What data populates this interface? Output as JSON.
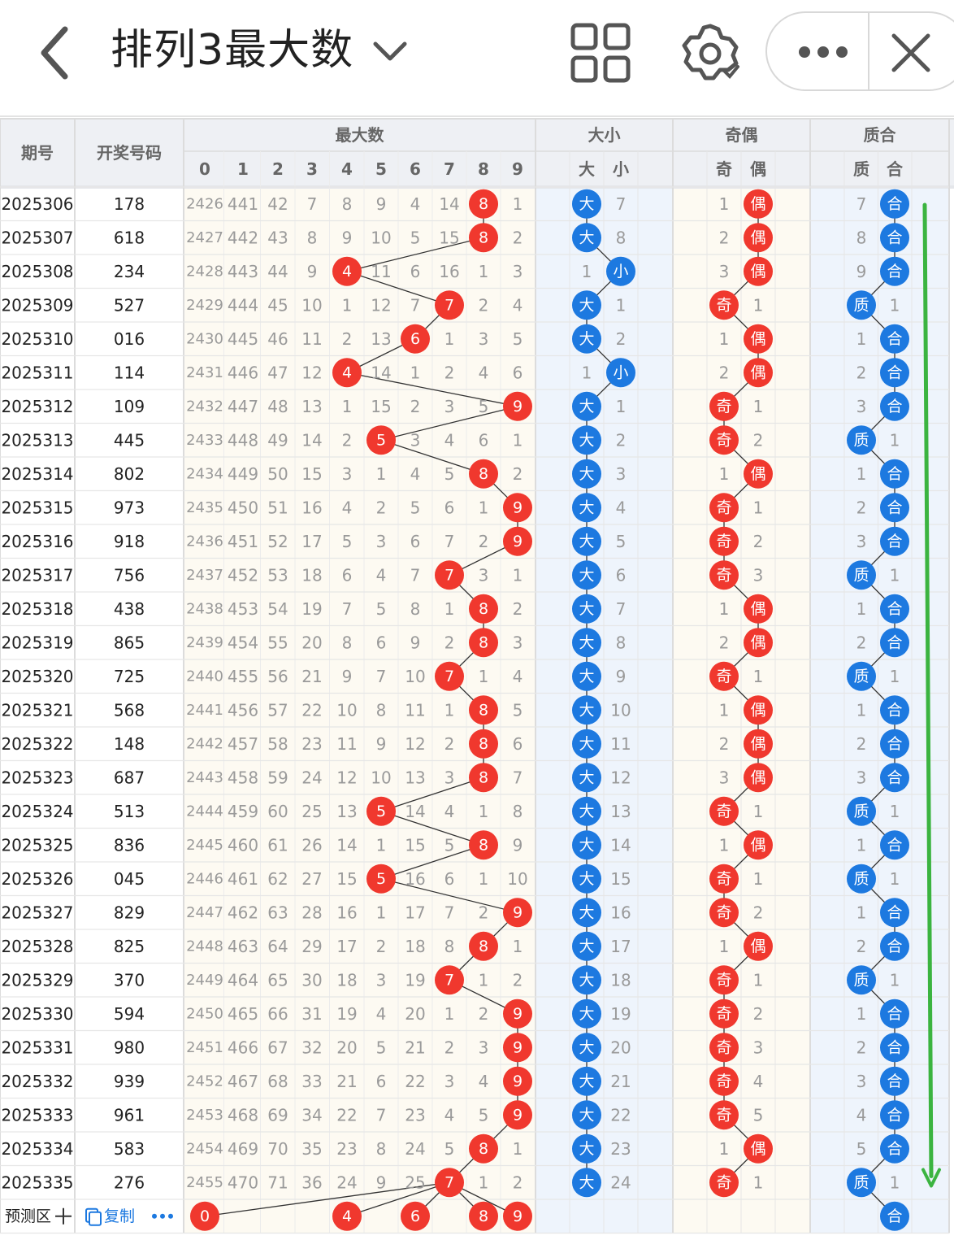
{
  "header": {
    "title": "排列3最大数",
    "icons": {
      "back": "back-chevron-icon",
      "dropdown": "chevron-down-icon",
      "grid": "grid-view-icon",
      "settings": "gear-settings-icon",
      "more": "more-dots-icon",
      "close": "close-icon"
    }
  },
  "table": {
    "col_issue": "期号",
    "col_draw": "开奖号码",
    "group_max": "最大数",
    "max_digits": [
      "0",
      "1",
      "2",
      "3",
      "4",
      "5",
      "6",
      "7",
      "8",
      "9"
    ],
    "group_size": "大小",
    "size_labels": [
      "大",
      "小"
    ],
    "group_parity": "奇偶",
    "parity_labels": [
      "奇",
      "偶"
    ],
    "group_prime": "质合",
    "prime_labels": [
      "质",
      "合"
    ],
    "rows": [
      {
        "issue": "2025306",
        "draw": "178",
        "omit": [
          2426,
          441,
          42,
          7,
          8,
          9,
          4,
          14,
          0,
          1
        ],
        "max": 8,
        "size": [
          0,
          7
        ],
        "parity": [
          1,
          0
        ],
        "prime": [
          7,
          0
        ]
      },
      {
        "issue": "2025307",
        "draw": "618",
        "omit": [
          2427,
          442,
          43,
          8,
          9,
          10,
          5,
          15,
          0,
          2
        ],
        "max": 8,
        "size": [
          0,
          8
        ],
        "parity": [
          2,
          0
        ],
        "prime": [
          8,
          0
        ]
      },
      {
        "issue": "2025308",
        "draw": "234",
        "omit": [
          2428,
          443,
          44,
          9,
          0,
          11,
          6,
          16,
          1,
          3
        ],
        "max": 4,
        "size": [
          1,
          0
        ],
        "parity": [
          3,
          0
        ],
        "prime": [
          9,
          0
        ]
      },
      {
        "issue": "2025309",
        "draw": "527",
        "omit": [
          2429,
          444,
          45,
          10,
          1,
          12,
          7,
          0,
          2,
          4
        ],
        "max": 7,
        "size": [
          0,
          1
        ],
        "parity": [
          0,
          1
        ],
        "prime": [
          0,
          1
        ]
      },
      {
        "issue": "2025310",
        "draw": "016",
        "omit": [
          2430,
          445,
          46,
          11,
          2,
          13,
          0,
          1,
          3,
          5
        ],
        "max": 6,
        "size": [
          0,
          2
        ],
        "parity": [
          1,
          0
        ],
        "prime": [
          1,
          0
        ]
      },
      {
        "issue": "2025311",
        "draw": "114",
        "omit": [
          2431,
          446,
          47,
          12,
          0,
          14,
          1,
          2,
          4,
          6
        ],
        "max": 4,
        "size": [
          1,
          0
        ],
        "parity": [
          2,
          0
        ],
        "prime": [
          2,
          0
        ]
      },
      {
        "issue": "2025312",
        "draw": "109",
        "omit": [
          2432,
          447,
          48,
          13,
          1,
          15,
          2,
          3,
          5,
          0
        ],
        "max": 9,
        "size": [
          0,
          1
        ],
        "parity": [
          0,
          1
        ],
        "prime": [
          3,
          0
        ]
      },
      {
        "issue": "2025313",
        "draw": "445",
        "omit": [
          2433,
          448,
          49,
          14,
          2,
          0,
          3,
          4,
          6,
          1
        ],
        "max": 5,
        "size": [
          0,
          2
        ],
        "parity": [
          0,
          2
        ],
        "prime": [
          0,
          1
        ]
      },
      {
        "issue": "2025314",
        "draw": "802",
        "omit": [
          2434,
          449,
          50,
          15,
          3,
          1,
          4,
          5,
          0,
          2
        ],
        "max": 8,
        "size": [
          0,
          3
        ],
        "parity": [
          1,
          0
        ],
        "prime": [
          1,
          0
        ]
      },
      {
        "issue": "2025315",
        "draw": "973",
        "omit": [
          2435,
          450,
          51,
          16,
          4,
          2,
          5,
          6,
          1,
          0
        ],
        "max": 9,
        "size": [
          0,
          4
        ],
        "parity": [
          0,
          1
        ],
        "prime": [
          2,
          0
        ]
      },
      {
        "issue": "2025316",
        "draw": "918",
        "omit": [
          2436,
          451,
          52,
          17,
          5,
          3,
          6,
          7,
          2,
          0
        ],
        "max": 9,
        "size": [
          0,
          5
        ],
        "parity": [
          0,
          2
        ],
        "prime": [
          3,
          0
        ]
      },
      {
        "issue": "2025317",
        "draw": "756",
        "omit": [
          2437,
          452,
          53,
          18,
          6,
          4,
          7,
          0,
          3,
          1
        ],
        "max": 7,
        "size": [
          0,
          6
        ],
        "parity": [
          0,
          3
        ],
        "prime": [
          0,
          1
        ]
      },
      {
        "issue": "2025318",
        "draw": "438",
        "omit": [
          2438,
          453,
          54,
          19,
          7,
          5,
          8,
          1,
          0,
          2
        ],
        "max": 8,
        "size": [
          0,
          7
        ],
        "parity": [
          1,
          0
        ],
        "prime": [
          1,
          0
        ]
      },
      {
        "issue": "2025319",
        "draw": "865",
        "omit": [
          2439,
          454,
          55,
          20,
          8,
          6,
          9,
          2,
          0,
          3
        ],
        "max": 8,
        "size": [
          0,
          8
        ],
        "parity": [
          2,
          0
        ],
        "prime": [
          2,
          0
        ]
      },
      {
        "issue": "2025320",
        "draw": "725",
        "omit": [
          2440,
          455,
          56,
          21,
          9,
          7,
          10,
          0,
          1,
          4
        ],
        "max": 7,
        "size": [
          0,
          9
        ],
        "parity": [
          0,
          1
        ],
        "prime": [
          0,
          1
        ]
      },
      {
        "issue": "2025321",
        "draw": "568",
        "omit": [
          2441,
          456,
          57,
          22,
          10,
          8,
          11,
          1,
          0,
          5
        ],
        "max": 8,
        "size": [
          0,
          10
        ],
        "parity": [
          1,
          0
        ],
        "prime": [
          1,
          0
        ]
      },
      {
        "issue": "2025322",
        "draw": "148",
        "omit": [
          2442,
          457,
          58,
          23,
          11,
          9,
          12,
          2,
          0,
          6
        ],
        "max": 8,
        "size": [
          0,
          11
        ],
        "parity": [
          2,
          0
        ],
        "prime": [
          2,
          0
        ]
      },
      {
        "issue": "2025323",
        "draw": "687",
        "omit": [
          2443,
          458,
          59,
          24,
          12,
          10,
          13,
          3,
          0,
          7
        ],
        "max": 8,
        "size": [
          0,
          12
        ],
        "parity": [
          3,
          0
        ],
        "prime": [
          3,
          0
        ]
      },
      {
        "issue": "2025324",
        "draw": "513",
        "omit": [
          2444,
          459,
          60,
          25,
          13,
          0,
          14,
          4,
          1,
          8
        ],
        "max": 5,
        "size": [
          0,
          13
        ],
        "parity": [
          0,
          1
        ],
        "prime": [
          0,
          1
        ]
      },
      {
        "issue": "2025325",
        "draw": "836",
        "omit": [
          2445,
          460,
          61,
          26,
          14,
          1,
          15,
          5,
          0,
          9
        ],
        "max": 8,
        "size": [
          0,
          14
        ],
        "parity": [
          1,
          0
        ],
        "prime": [
          1,
          0
        ]
      },
      {
        "issue": "2025326",
        "draw": "045",
        "omit": [
          2446,
          461,
          62,
          27,
          15,
          0,
          16,
          6,
          1,
          10
        ],
        "max": 5,
        "size": [
          0,
          15
        ],
        "parity": [
          0,
          1
        ],
        "prime": [
          0,
          1
        ]
      },
      {
        "issue": "2025327",
        "draw": "829",
        "omit": [
          2447,
          462,
          63,
          28,
          16,
          1,
          17,
          7,
          2,
          0
        ],
        "max": 9,
        "size": [
          0,
          16
        ],
        "parity": [
          0,
          2
        ],
        "prime": [
          1,
          0
        ]
      },
      {
        "issue": "2025328",
        "draw": "825",
        "omit": [
          2448,
          463,
          64,
          29,
          17,
          2,
          18,
          8,
          0,
          1
        ],
        "max": 8,
        "size": [
          0,
          17
        ],
        "parity": [
          1,
          0
        ],
        "prime": [
          2,
          0
        ]
      },
      {
        "issue": "2025329",
        "draw": "370",
        "omit": [
          2449,
          464,
          65,
          30,
          18,
          3,
          19,
          0,
          1,
          2
        ],
        "max": 7,
        "size": [
          0,
          18
        ],
        "parity": [
          0,
          1
        ],
        "prime": [
          0,
          1
        ]
      },
      {
        "issue": "2025330",
        "draw": "594",
        "omit": [
          2450,
          465,
          66,
          31,
          19,
          4,
          20,
          1,
          2,
          0
        ],
        "max": 9,
        "size": [
          0,
          19
        ],
        "parity": [
          0,
          2
        ],
        "prime": [
          1,
          0
        ]
      },
      {
        "issue": "2025331",
        "draw": "980",
        "omit": [
          2451,
          466,
          67,
          32,
          20,
          5,
          21,
          2,
          3,
          0
        ],
        "max": 9,
        "size": [
          0,
          20
        ],
        "parity": [
          0,
          3
        ],
        "prime": [
          2,
          0
        ]
      },
      {
        "issue": "2025332",
        "draw": "939",
        "omit": [
          2452,
          467,
          68,
          33,
          21,
          6,
          22,
          3,
          4,
          0
        ],
        "max": 9,
        "size": [
          0,
          21
        ],
        "parity": [
          0,
          4
        ],
        "prime": [
          3,
          0
        ]
      },
      {
        "issue": "2025333",
        "draw": "961",
        "omit": [
          2453,
          468,
          69,
          34,
          22,
          7,
          23,
          4,
          5,
          0
        ],
        "max": 9,
        "size": [
          0,
          22
        ],
        "parity": [
          0,
          5
        ],
        "prime": [
          4,
          0
        ]
      },
      {
        "issue": "2025334",
        "draw": "583",
        "omit": [
          2454,
          469,
          70,
          35,
          23,
          8,
          24,
          5,
          0,
          1
        ],
        "max": 8,
        "size": [
          0,
          23
        ],
        "parity": [
          1,
          0
        ],
        "prime": [
          5,
          0
        ]
      },
      {
        "issue": "2025335",
        "draw": "276",
        "omit": [
          2455,
          470,
          71,
          36,
          24,
          9,
          25,
          0,
          1,
          2
        ],
        "max": 7,
        "size": [
          0,
          24
        ],
        "parity": [
          0,
          1
        ],
        "prime": [
          0,
          1
        ]
      }
    ],
    "prediction": {
      "label": "预测区",
      "add_icon": "plus-icon",
      "copy_label": "复制",
      "copy_icon": "copy-icon",
      "more_icon": "more-dots-icon",
      "picks": [
        "0",
        "4",
        "6",
        "8",
        "9"
      ],
      "prime_pick": "合"
    },
    "trend_arrow_icon": "down-arrow-icon"
  },
  "colors": {
    "red": "#f0382e",
    "blue": "#1d79e0",
    "green": "#3bb440",
    "header_bg": "#eef0f4",
    "max_bg": "#fdfaf2",
    "size_bg": "#eef4fc",
    "parity_bg": "#fdfaf2",
    "prime_bg": "#eef4fc"
  }
}
